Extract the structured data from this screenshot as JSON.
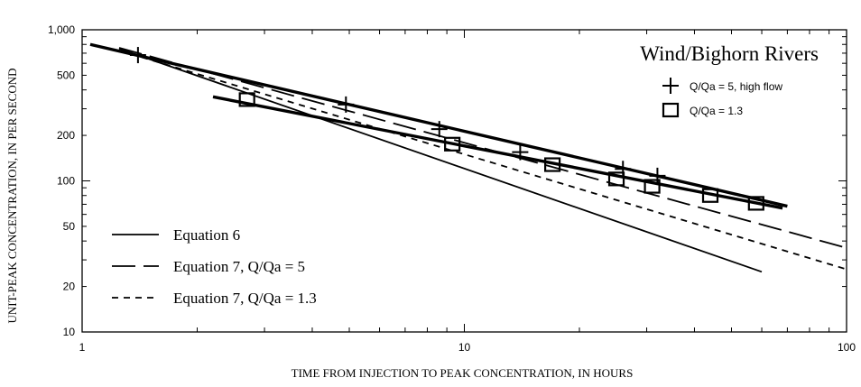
{
  "chart_data": {
    "type": "line",
    "title": "Wind/Bighorn Rivers",
    "xlabel": "TIME FROM INJECTION TO PEAK CONCENTRATION, IN HOURS",
    "ylabel": "UNIT-PEAK CONCENTRATION, IN PER SECOND",
    "x_scale": "log",
    "y_scale": "log",
    "xlim": [
      1,
      100
    ],
    "ylim": [
      10,
      1000
    ],
    "x_ticks": [
      "1",
      "10",
      "100"
    ],
    "y_ticks": [
      {
        "value": 1000,
        "label": "1,000"
      },
      {
        "value": 500,
        "label": "500"
      },
      {
        "value": 200,
        "label": "200"
      },
      {
        "value": 100,
        "label": "100"
      },
      {
        "value": 50,
        "label": "50"
      },
      {
        "value": 20,
        "label": "20"
      },
      {
        "value": 10,
        "label": "10"
      }
    ],
    "grid": false,
    "legend_lines_position": "bottom-left",
    "legend_markers_position": "top-right",
    "series": [
      {
        "name": "Equation 6",
        "style": "solid",
        "x": [
          1.25,
          60
        ],
        "y": [
          750,
          25
        ]
      },
      {
        "name": "Equation 7, Q/Qa = 5",
        "style": "long-dash",
        "x": [
          1.25,
          100
        ],
        "y": [
          760,
          36
        ]
      },
      {
        "name": "Equation 7, Q/Qa = 1.3",
        "style": "short-dash",
        "x": [
          1.25,
          100
        ],
        "y": [
          730,
          26
        ]
      },
      {
        "name": "Q/Qa = 5, high flow",
        "style": "markers",
        "marker": "plus",
        "x": [
          1.4,
          4.9,
          8.6,
          14,
          26,
          32
        ],
        "y": [
          680,
          320,
          220,
          155,
          120,
          108
        ]
      },
      {
        "name": "Q/Qa = 1.3",
        "style": "markers",
        "marker": "square",
        "x": [
          2.7,
          9.3,
          17,
          25,
          31,
          44,
          58
        ],
        "y": [
          345,
          175,
          128,
          103,
          92,
          80,
          71
        ]
      }
    ],
    "fit_lines": [
      {
        "style": "solid-bold",
        "x": [
          1.05,
          70
        ],
        "y": [
          800,
          68
        ]
      },
      {
        "style": "solid-bold",
        "x": [
          2.2,
          68
        ],
        "y": [
          360,
          66
        ]
      }
    ],
    "line_color": "#000000"
  }
}
